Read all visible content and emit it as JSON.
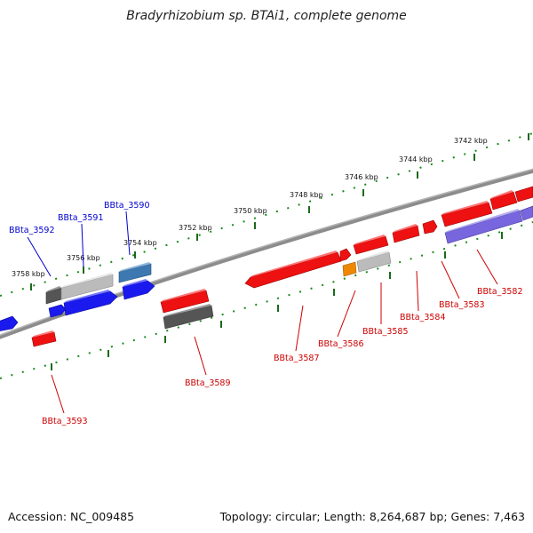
{
  "title": "Bradyrhizobium sp. BTAi1, complete genome",
  "footer": {
    "accession": "Accession: NC_009485",
    "summary": "Topology: circular; Length: 8,264,687 bp; Genes: 7,463"
  },
  "colors": {
    "backbone": "#8c8c8c",
    "scale_ticks": "#1a7d1a",
    "label_blue": "#0000cc",
    "label_red": "#cc0000",
    "gene_red": "#ee1111",
    "gene_blue": "#1a1aee",
    "gene_gray": "#555555",
    "gene_lightgray": "#bbbbbb",
    "gene_steel": "#3d78b0",
    "gene_orange": "#ee8800",
    "gene_purple": "#7766dd"
  },
  "scale": {
    "labels": [
      "3758 kbp",
      "3756 kbp",
      "3754 kbp",
      "3752 kbp",
      "3750 kbp",
      "3748 kbp",
      "3746 kbp",
      "3744 kbp",
      "3742 kbp"
    ]
  },
  "genes": {
    "top": [
      "BBta_3592",
      "BBta_3591",
      "BBta_3590"
    ],
    "bottom": [
      "BBta_3593",
      "BBta_3589",
      "BBta_3587",
      "BBta_3586",
      "BBta_3585",
      "BBta_3584",
      "BBta_3583",
      "BBta_3582"
    ]
  }
}
